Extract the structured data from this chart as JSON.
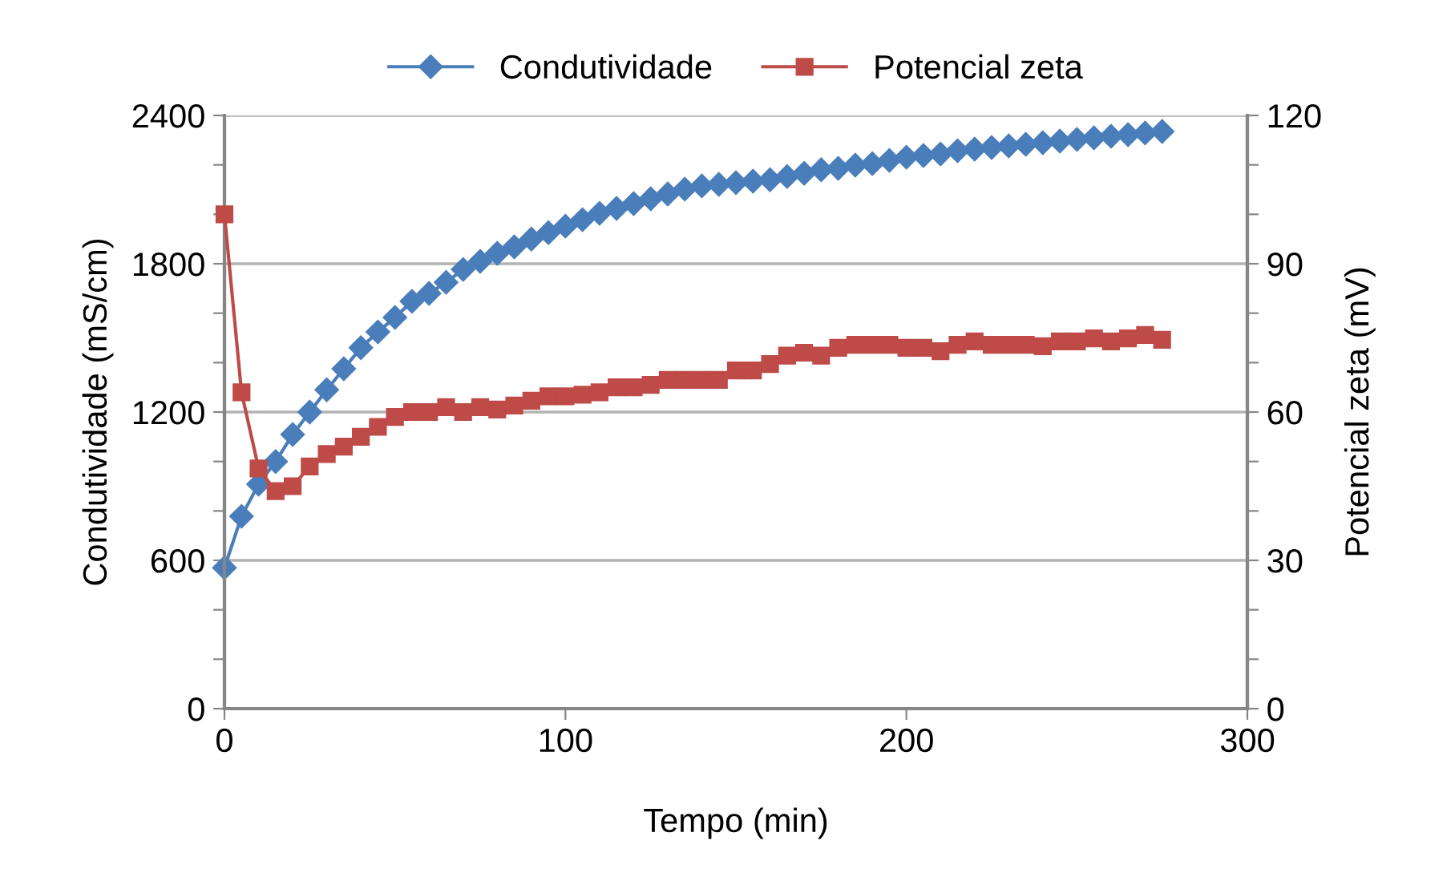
{
  "chart_data": {
    "type": "line",
    "xlabel": "Tempo (min)",
    "ylabel": "Condutividade (mS/cm)",
    "y2label": "Potencial zeta (mV)",
    "xlim": [
      0,
      300
    ],
    "xticks": [
      0,
      100,
      200,
      300
    ],
    "ylim": [
      0,
      2400
    ],
    "yticks": [
      0,
      {
        "value": 200,
        "label": null
      },
      {
        "value": 400,
        "label": null
      },
      600,
      {
        "value": 800,
        "label": null
      },
      {
        "value": 1000,
        "label": null
      },
      1200,
      {
        "value": 1400,
        "label": null
      },
      {
        "value": 1600,
        "label": null
      },
      1800,
      {
        "value": 2000,
        "label": null
      },
      {
        "value": 2200,
        "label": null
      },
      2400
    ],
    "y2lim": [
      0,
      120
    ],
    "y2ticks": [
      0,
      {
        "value": 10,
        "label": null
      },
      {
        "value": 20,
        "label": null
      },
      30,
      {
        "value": 40,
        "label": null
      },
      {
        "value": 50,
        "label": null
      },
      60,
      {
        "value": 70,
        "label": null
      },
      {
        "value": 80,
        "label": null
      },
      90,
      {
        "value": 100,
        "label": null
      },
      {
        "value": 110,
        "label": null
      },
      120
    ],
    "grid": "y",
    "legend": "top",
    "line_style": "solid",
    "x": [
      0,
      5,
      10,
      15,
      20,
      25,
      30,
      35,
      40,
      45,
      50,
      55,
      60,
      65,
      70,
      75,
      80,
      85,
      90,
      95,
      100,
      105,
      110,
      115,
      120,
      125,
      130,
      135,
      140,
      145,
      150,
      155,
      160,
      165,
      170,
      175,
      180,
      185,
      190,
      195,
      200,
      205,
      210,
      215,
      220,
      225,
      230,
      235,
      240,
      245,
      250,
      255,
      260,
      265,
      270,
      275
    ],
    "series": [
      {
        "name": "Condutividade",
        "color": "#4a7ebb",
        "marker": "diamond",
        "values": [
          570,
          778,
          908,
          1000,
          1109,
          1200,
          1290,
          1375,
          1460,
          1524,
          1583,
          1648,
          1680,
          1725,
          1777,
          1810,
          1842,
          1868,
          1900,
          1926,
          1952,
          1978,
          2004,
          2024,
          2043,
          2063,
          2082,
          2102,
          2115,
          2121,
          2128,
          2134,
          2140,
          2153,
          2166,
          2180,
          2186,
          2199,
          2205,
          2218,
          2231,
          2238,
          2244,
          2257,
          2264,
          2270,
          2277,
          2283,
          2290,
          2296,
          2303,
          2309,
          2316,
          2322,
          2329,
          2335
        ]
      },
      {
        "name": "Potencial zeta",
        "color": "#be4b48",
        "marker": "square",
        "axis": "y2",
        "values": [
          100,
          64,
          48.6,
          44,
          45,
          49,
          51.5,
          53,
          55,
          57,
          59,
          60,
          60,
          61,
          60,
          61,
          60.5,
          61.3,
          62.3,
          63.2,
          63.2,
          63.5,
          64,
          65,
          65,
          65.5,
          66.5,
          66.5,
          66.5,
          66.5,
          68.4,
          68.4,
          69.7,
          71.4,
          72,
          71.4,
          73,
          73.6,
          73.6,
          73.6,
          73,
          73,
          72.3,
          73.6,
          74.3,
          73.6,
          73.6,
          73.6,
          73.3,
          74.3,
          74.3,
          74.9,
          74.3,
          74.9,
          75.6,
          74.6
        ]
      }
    ]
  }
}
